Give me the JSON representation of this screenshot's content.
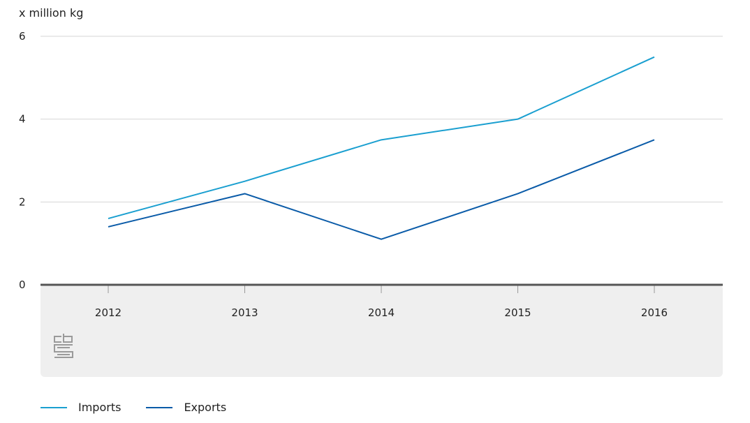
{
  "chart_data": {
    "type": "line",
    "unit_label": "x million kg",
    "categories": [
      "2012",
      "2013",
      "2014",
      "2015",
      "2016"
    ],
    "ylim": [
      0,
      6
    ],
    "yticks": [
      0,
      2,
      4,
      6
    ],
    "grid": true,
    "legend_position": "bottom-left",
    "series": [
      {
        "name": "Imports",
        "color": "#1a9fd0",
        "values": [
          1.6,
          2.5,
          3.5,
          4.0,
          5.5
        ]
      },
      {
        "name": "Exports",
        "color": "#0a5ba8",
        "values": [
          1.4,
          2.2,
          1.1,
          2.2,
          3.5
        ]
      }
    ]
  },
  "logo": {
    "icon": "cbs-logo-icon",
    "text": "cbs"
  }
}
